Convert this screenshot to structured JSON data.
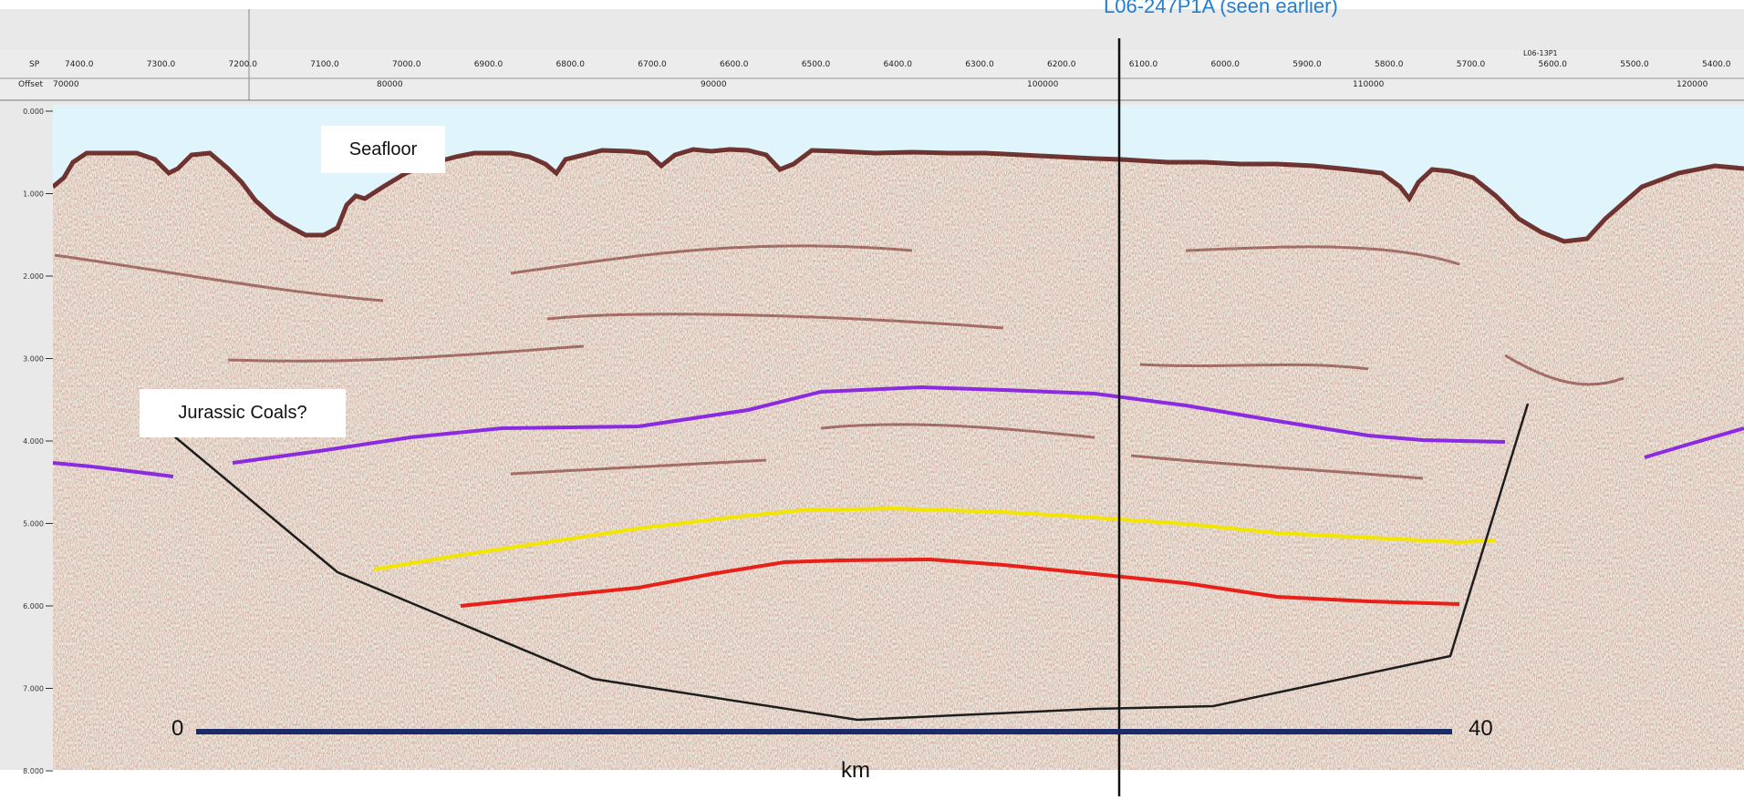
{
  "header": {
    "line_label": "L06-247P1A (seen earlier)",
    "row_labels": [
      "SP",
      "Offset"
    ],
    "sp_ticks": [
      "7400.0",
      "7300.0",
      "7200.0",
      "7100.0",
      "7000.0",
      "6900.0",
      "6800.0",
      "6700.0",
      "6600.0",
      "6500.0",
      "6400.0",
      "6300.0",
      "6200.0",
      "6100.0",
      "6000.0",
      "5900.0",
      "5800.0",
      "5700.0",
      "5600.0",
      "5500.0",
      "5400.0"
    ],
    "offset_ticks": [
      "70000",
      "80000",
      "90000",
      "100000",
      "110000",
      "120000"
    ],
    "crossing_label": "L06-13P1"
  },
  "time_axis": {
    "ticks": [
      "0.000",
      "1.000",
      "2.000",
      "3.000",
      "4.000",
      "5.000",
      "6.000",
      "7.000",
      "8.000"
    ]
  },
  "annotations": {
    "seafloor": "Seafloor",
    "jurassic": "Jurassic Coals?"
  },
  "scale_bar": {
    "start": "0",
    "end": "40",
    "unit": "km"
  },
  "colors": {
    "water": "#dff5fb",
    "purple_horizon": "#8a2be2",
    "yellow_horizon": "#f2e600",
    "red_horizon": "#e8201a",
    "basin_outline": "#1e1e1e",
    "scale_bar": "#1a2a6a",
    "title_link": "#1f7fd1"
  }
}
